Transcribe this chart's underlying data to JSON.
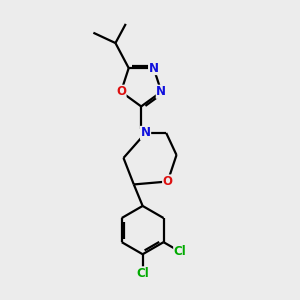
{
  "bg_color": "#ececec",
  "bond_color": "#000000",
  "N_color": "#1010dd",
  "O_color": "#dd1010",
  "Cl_color": "#00aa00",
  "line_width": 1.6,
  "font_size": 8.5,
  "fig_size": [
    3.0,
    3.0
  ],
  "dpi": 100,
  "xlim": [
    0,
    10
  ],
  "ylim": [
    0,
    10
  ]
}
